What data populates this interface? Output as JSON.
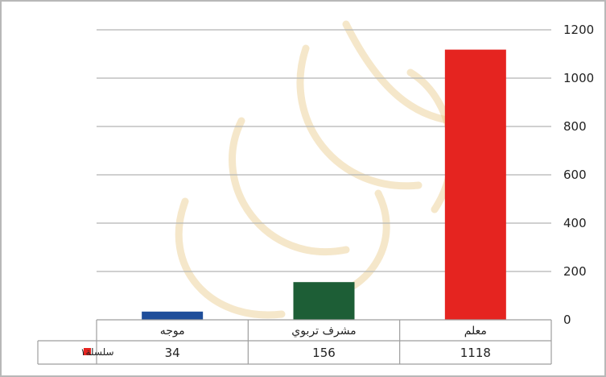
{
  "chart_data": {
    "type": "bar",
    "categories": [
      "موجه",
      "مشرف تربوي",
      "معلم"
    ],
    "series": [
      {
        "name": "سلسلة١",
        "values": [
          34,
          156,
          1118
        ],
        "colors": [
          "#1f4e9a",
          "#1d5e36",
          "#e52420"
        ]
      }
    ],
    "yticks": [
      "0",
      "200",
      "400",
      "600",
      "800",
      "1000",
      "1200"
    ],
    "ylim": [
      0,
      1200
    ],
    "grid": true,
    "y_axis_side": "right",
    "data_table": true,
    "legend_position": "bottom-right"
  }
}
